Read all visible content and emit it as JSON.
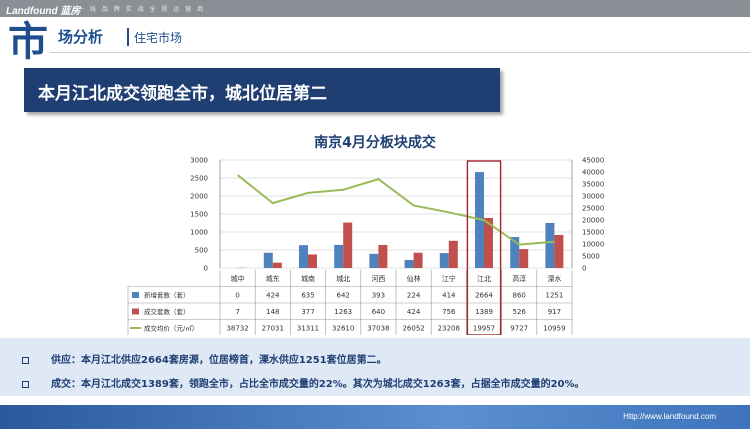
{
  "brand": {
    "logo": "Landfound 蓝房",
    "slogan": "一 线 品 牌 实 战 全 程 运 营 商"
  },
  "header": {
    "big_char": "市",
    "title": "场分析",
    "subtitle": "住宅市场"
  },
  "banner": {
    "text": "本月江北成交领跑全市，城北位居第二"
  },
  "chart_data": {
    "type": "bar",
    "title": "南京4月分板块成交",
    "categories": [
      "城中",
      "城东",
      "城南",
      "城北",
      "河西",
      "仙林",
      "江宁",
      "江北",
      "高淳",
      "溧水"
    ],
    "series": [
      {
        "name": "新增套数（套）",
        "type": "bar",
        "axis": "left",
        "color": "#4f81bd",
        "values": [
          0,
          424,
          635,
          642,
          393,
          224,
          414,
          2664,
          860,
          1251
        ]
      },
      {
        "name": "成交套数（套）",
        "type": "bar",
        "axis": "left",
        "color": "#c0504d",
        "values": [
          7,
          148,
          377,
          1263,
          640,
          424,
          756,
          1389,
          526,
          917
        ]
      },
      {
        "name": "成交均价（元/㎡）",
        "type": "line",
        "axis": "right",
        "color": "#9bbb59",
        "values": [
          38732,
          27031,
          31311,
          32610,
          37038,
          26052,
          23208,
          19957,
          9727,
          10959
        ]
      }
    ],
    "left_axis": {
      "min": 0,
      "max": 3000,
      "ticks": [
        0,
        500,
        1000,
        1500,
        2000,
        2500,
        3000
      ]
    },
    "right_axis": {
      "min": 0,
      "max": 45000,
      "ticks": [
        0,
        5000,
        10000,
        15000,
        20000,
        25000,
        30000,
        35000,
        40000,
        45000
      ]
    },
    "highlight_category": "江北",
    "highlight_color": "#a3242b",
    "grid": true,
    "legend": "data-table-below"
  },
  "bullets": [
    {
      "text": "供应：本月江北供应2664套房源，位居榜首，溧水供应1251套位居第二。"
    },
    {
      "text": "成交：本月江北成交1389套，领跑全市，占比全市成交量的22%。其次为城北成交1263套，占据全市成交量的20%。"
    }
  ],
  "footer": {
    "url": "Http://www.landfound.com"
  }
}
